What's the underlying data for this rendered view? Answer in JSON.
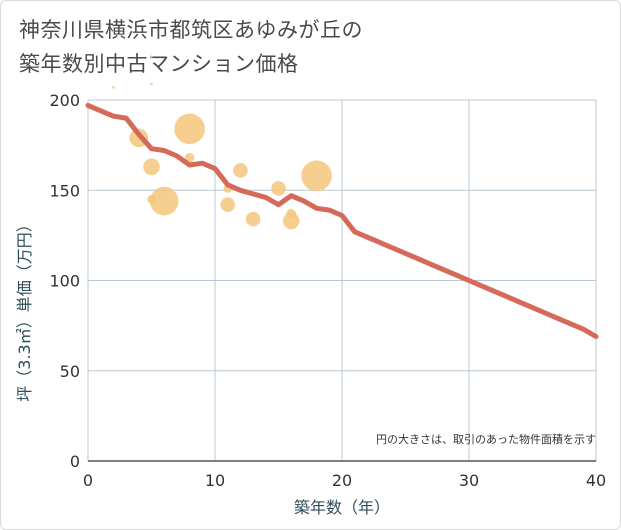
{
  "title_line1": "神奈川県横浜市都筑区あゆみが丘の",
  "title_line2": "築年数別中古マンション価格",
  "note": "円の大きさは、取引のあった物件面積を示す",
  "colors": {
    "trend": "#d46a5a",
    "bubble": "#f5c67c",
    "grid": "#b8c7d3",
    "axis_title": "#2f4d5a"
  },
  "chart_data": {
    "type": "scatter",
    "xlabel": "築年数（年）",
    "ylabel": "坪（3.3㎡）単価（万円）",
    "xlim": [
      0,
      40
    ],
    "ylim": [
      0,
      200
    ],
    "x_ticks": [
      "0",
      "10",
      "20",
      "30",
      "40"
    ],
    "y_ticks": [
      "0",
      "50",
      "100",
      "150",
      "200"
    ],
    "x_tick_values": [
      0,
      10,
      20,
      30,
      40
    ],
    "y_tick_values": [
      0,
      50,
      100,
      150,
      200
    ],
    "bubbles": [
      {
        "x": 2,
        "y": 207,
        "size": 1
      },
      {
        "x": 5,
        "y": 224,
        "size": 1
      },
      {
        "x": 5,
        "y": 209,
        "size": 1
      },
      {
        "x": 4,
        "y": 179,
        "size": 18
      },
      {
        "x": 5,
        "y": 163,
        "size": 16
      },
      {
        "x": 5,
        "y": 145,
        "size": 8
      },
      {
        "x": 6,
        "y": 144,
        "size": 28
      },
      {
        "x": 8,
        "y": 184,
        "size": 30
      },
      {
        "x": 8,
        "y": 168,
        "size": 9
      },
      {
        "x": 11,
        "y": 151,
        "size": 8
      },
      {
        "x": 11,
        "y": 142,
        "size": 14
      },
      {
        "x": 12,
        "y": 161,
        "size": 14
      },
      {
        "x": 13,
        "y": 134,
        "size": 14
      },
      {
        "x": 15,
        "y": 151,
        "size": 14
      },
      {
        "x": 16,
        "y": 137,
        "size": 9
      },
      {
        "x": 16,
        "y": 133,
        "size": 16
      },
      {
        "x": 18,
        "y": 158,
        "size": 30
      }
    ],
    "series": [
      {
        "x": [
          0,
          1,
          2,
          3,
          4,
          5,
          6,
          7,
          8,
          9,
          10,
          11,
          12,
          13,
          14,
          15,
          16,
          17,
          18,
          19,
          20,
          21,
          22,
          23,
          24,
          25,
          26,
          27,
          28,
          29,
          30,
          31,
          32,
          33,
          34,
          35,
          36,
          37,
          38,
          39,
          40
        ],
        "y": [
          197,
          194,
          191,
          190,
          181,
          173,
          172,
          169,
          164,
          165,
          162,
          153,
          150,
          148,
          146,
          142,
          147,
          144,
          140,
          139,
          136,
          127,
          124,
          121,
          118,
          115,
          112,
          109,
          106,
          103,
          100,
          97,
          94,
          91,
          88,
          85,
          82,
          79,
          76,
          73,
          69
        ]
      }
    ]
  }
}
